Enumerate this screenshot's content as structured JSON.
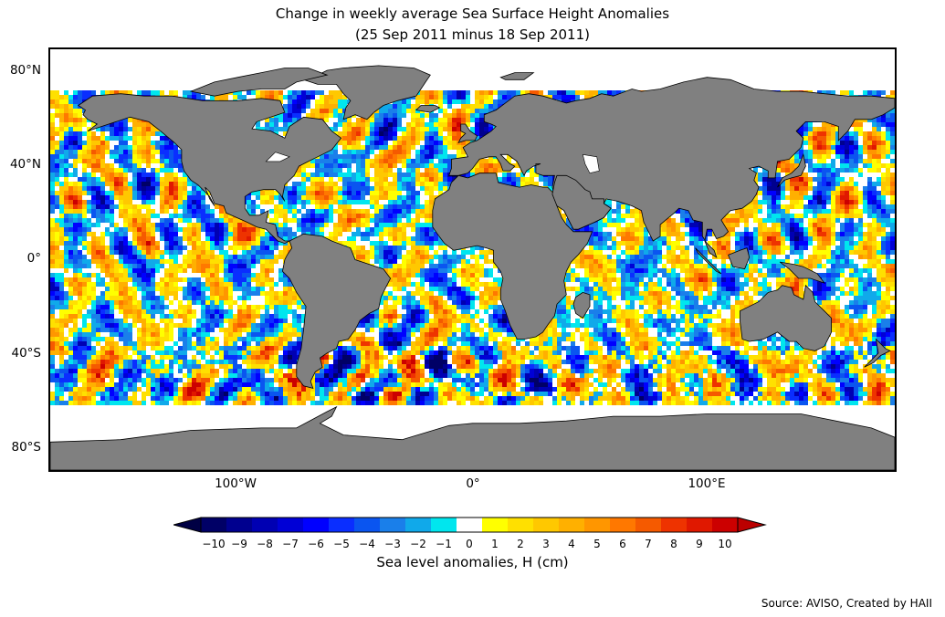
{
  "title_line1": "Change in weekly average Sea Surface Height Anomalies",
  "title_line2": "(25 Sep 2011 minus 18 Sep 2011)",
  "lat_labels": [
    "80°N",
    "40°N",
    "0°",
    "40°S",
    "80°S"
  ],
  "lon_labels": [
    "100°W",
    "0°",
    "100°E"
  ],
  "colorbar": {
    "label": "Sea level anomalies, H (cm)",
    "ticks": [
      "−10",
      "−9",
      "−8",
      "−7",
      "−6",
      "−5",
      "−4",
      "−3",
      "−2",
      "−1",
      "0",
      "1",
      "2",
      "3",
      "4",
      "5",
      "6",
      "7",
      "8",
      "9",
      "10"
    ],
    "colors": [
      "#000066",
      "#00008f",
      "#0000b3",
      "#0000d6",
      "#0000ff",
      "#0a2eff",
      "#0a55f0",
      "#1a7fea",
      "#10a9ea",
      "#00e6ee",
      "#ffffff",
      "#ffff00",
      "#ffe000",
      "#ffc800",
      "#ffb000",
      "#ff9600",
      "#ff7800",
      "#f55a00",
      "#ee3300",
      "#e01800",
      "#cc0000"
    ],
    "under_color": "#000044",
    "over_color": "#bb0000"
  },
  "land_color": "#808080",
  "source": "Source: AVISO, Created by HAII"
}
